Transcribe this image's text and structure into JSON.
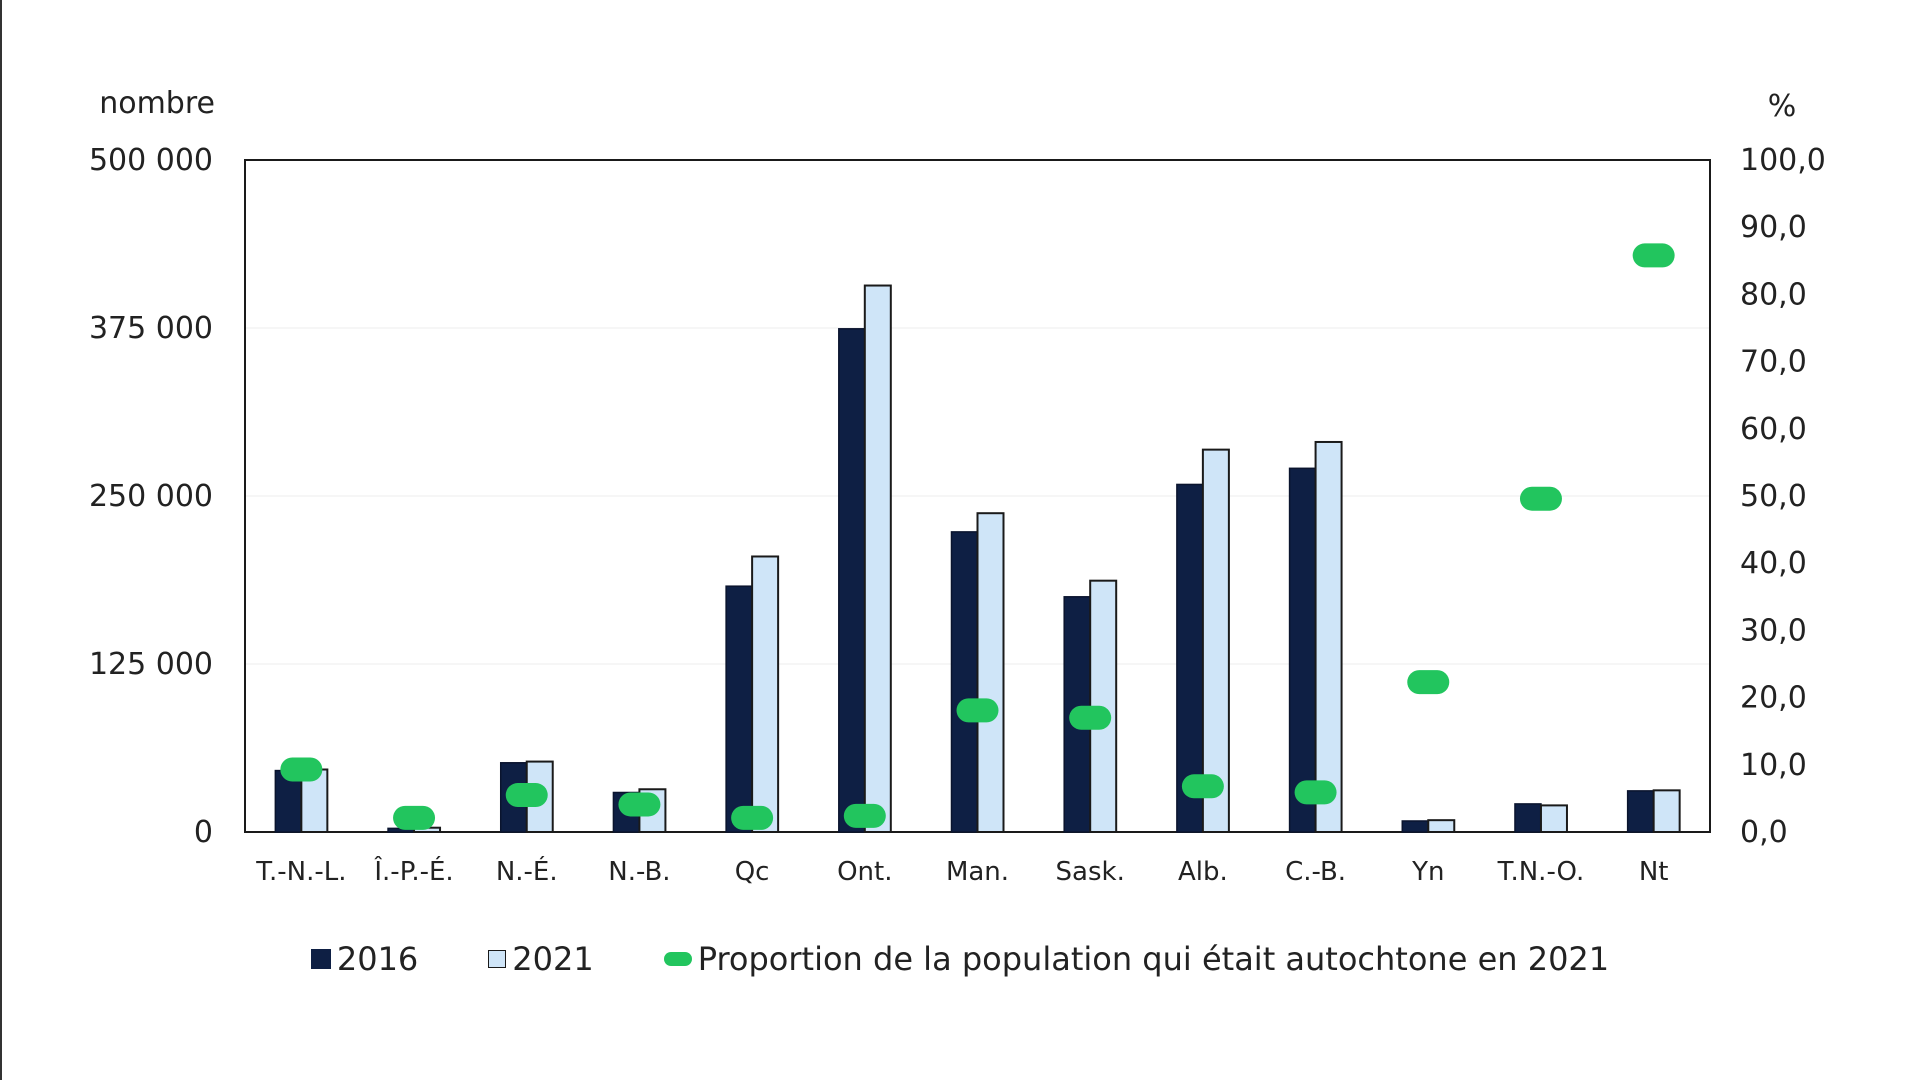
{
  "colors": {
    "bar2016": "#0e1f44",
    "bar2021": "#cfe5f8",
    "proportion": "#22c55e"
  },
  "chart_data": {
    "type": "bar",
    "title": "",
    "ylabel": "nombre",
    "y2label": "%",
    "ylim": [
      0,
      500000
    ],
    "y2lim": [
      0,
      100
    ],
    "yticks": [
      "0",
      "125 000",
      "250 000",
      "375 000",
      "500 000"
    ],
    "y2ticks": [
      "0,0",
      "10,0",
      "20,0",
      "30,0",
      "40,0",
      "50,0",
      "60,0",
      "70,0",
      "80,0",
      "90,0",
      "100,0"
    ],
    "categories": [
      "T.-N.-L.",
      "Î.-P.-É.",
      "N.-É.",
      "N.-B.",
      "Qc",
      "Ont.",
      "Man.",
      "Sask.",
      "Alb.",
      "C.-B.",
      "Yn",
      "T.N.-O.",
      "Nt"
    ],
    "series": [
      {
        "name": "2016",
        "type": "bar",
        "axis": "left",
        "values": [
          45700,
          2700,
          51500,
          29400,
          182900,
          374400,
          223300,
          175000,
          258600,
          270600,
          8200,
          20900,
          30600
        ]
      },
      {
        "name": "2021",
        "type": "bar",
        "axis": "left",
        "values": [
          46500,
          3200,
          52400,
          31800,
          205000,
          406600,
          237200,
          187000,
          284500,
          290200,
          8800,
          19800,
          31000
        ]
      },
      {
        "name": "Proportion de la population qui était autochtone en 2021",
        "type": "scatter",
        "axis": "right",
        "values": [
          9.3,
          2.1,
          5.5,
          4.1,
          2.1,
          2.4,
          18.1,
          17.0,
          6.8,
          5.9,
          22.3,
          49.6,
          85.8
        ]
      }
    ],
    "legend_position": "bottom",
    "grid": true
  }
}
